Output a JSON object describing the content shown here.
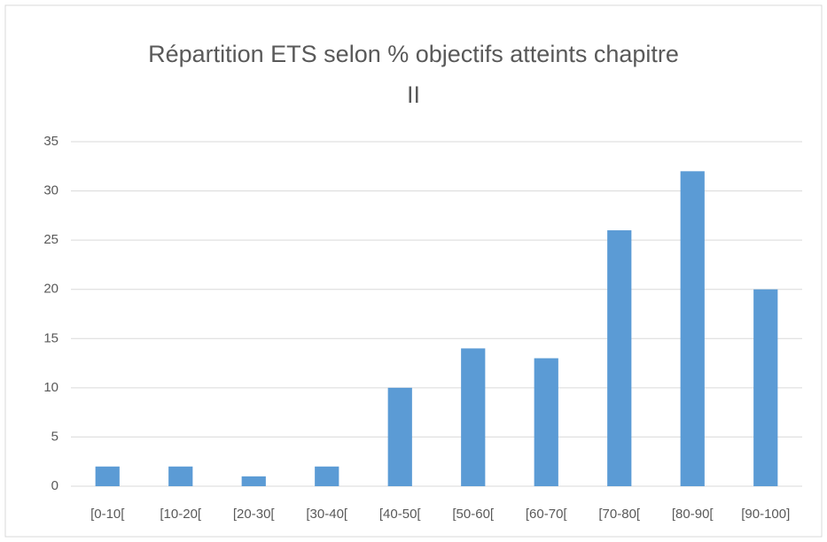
{
  "chart_data": {
    "type": "bar",
    "title": "Répartition ETS selon % objectifs atteints chapitre II",
    "categories": [
      "[0-10[",
      "[10-20[",
      "[20-30[",
      "[30-40[",
      "[40-50[",
      "[50-60[",
      "[60-70[",
      "[70-80[",
      "[80-90[",
      "[90-100]"
    ],
    "values": [
      2,
      2,
      1,
      2,
      10,
      14,
      13,
      26,
      32,
      20
    ],
    "color": "#5b9bd5",
    "ylim": [
      0,
      35
    ],
    "yticks": [
      0,
      5,
      10,
      15,
      20,
      25,
      30,
      35
    ],
    "grid": true
  }
}
